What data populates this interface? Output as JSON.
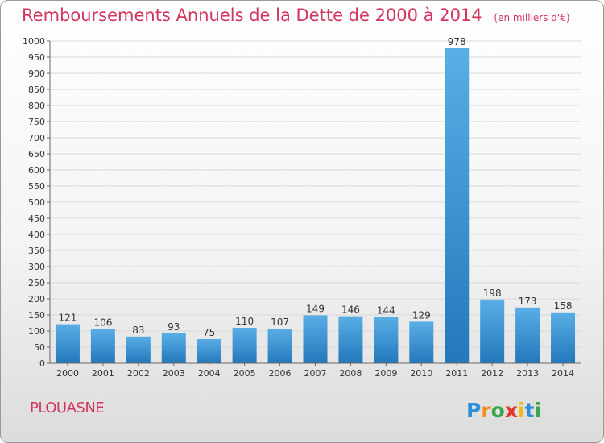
{
  "header": {
    "title": "Remboursements Annuels de la Dette de 2000 à 2014",
    "subtitle": "(en milliers d'€)"
  },
  "footer": {
    "commune": "PLOUASNE",
    "brand_logo_text": "Proxiti"
  },
  "colors": {
    "title": "#d2365e",
    "bar_top": "#5aaee6",
    "bar_bottom": "#2378bb",
    "grid": "#d9d9d9",
    "axis": "#666666"
  },
  "chart_data": {
    "type": "bar",
    "categories": [
      "2000",
      "2001",
      "2002",
      "2003",
      "2004",
      "2005",
      "2006",
      "2007",
      "2008",
      "2009",
      "2010",
      "2011",
      "2012",
      "2013",
      "2014"
    ],
    "values": [
      121,
      106,
      83,
      93,
      75,
      110,
      107,
      149,
      146,
      144,
      129,
      978,
      198,
      173,
      158
    ],
    "ylim": [
      0,
      1000
    ],
    "yticks": [
      0,
      50,
      100,
      150,
      200,
      250,
      300,
      350,
      400,
      450,
      500,
      550,
      600,
      650,
      700,
      750,
      800,
      850,
      900,
      950,
      1000
    ],
    "grid": true,
    "data_labels": true
  }
}
